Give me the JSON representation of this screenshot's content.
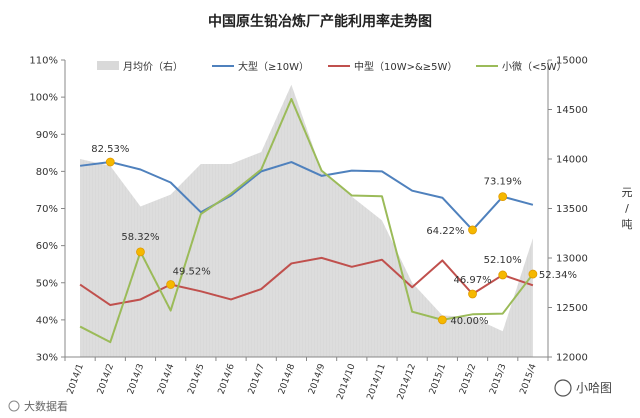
{
  "chart_data": {
    "type": "line",
    "title": "中国原生铅冶炼厂产能利用率走势图",
    "categories": [
      "2014/1",
      "2014/2",
      "2014/3",
      "2014/4",
      "2014/5",
      "2014/6",
      "2014/7",
      "2014/8",
      "2014/9",
      "2014/10",
      "2014/11",
      "2014/12",
      "2015/1",
      "2015/2",
      "2015/3",
      "2015/4"
    ],
    "y_left": {
      "min": 30,
      "max": 110,
      "step": 10,
      "tick_labels": [
        "30%",
        "40%",
        "50%",
        "60%",
        "70%",
        "80%",
        "90%",
        "100%",
        "110%"
      ]
    },
    "y_right": {
      "min": 12000,
      "max": 15000,
      "step": 500,
      "tick_labels": [
        "12000",
        "12500",
        "13000",
        "13500",
        "14000",
        "14500",
        "15000"
      ],
      "label": "元/吨"
    },
    "area_series": {
      "name": "月均价（右）",
      "color": "#d9d9d9",
      "values": [
        14000,
        13930,
        13520,
        13640,
        13950,
        13950,
        14070,
        14750,
        13880,
        13620,
        13380,
        12750,
        12420,
        12400,
        12260,
        13200
      ]
    },
    "series": [
      {
        "name": "大型（≥10W）",
        "color": "#4f81bd",
        "values": [
          81.5,
          82.53,
          80.5,
          77,
          69,
          73.5,
          80,
          82.5,
          78.8,
          80.2,
          80,
          74.8,
          72.9,
          64.22,
          73.19,
          71
        ]
      },
      {
        "name": "中型（10W>&≥5W）",
        "color": "#c0504d",
        "values": [
          49.5,
          44,
          45.5,
          49.52,
          47.7,
          45.5,
          48.3,
          55.2,
          56.7,
          54.3,
          56.2,
          48.8,
          56,
          46.97,
          52.1,
          49.3
        ]
      },
      {
        "name": "小微（<5W）",
        "color": "#9bbb59",
        "values": [
          38.2,
          34,
          58.32,
          42.5,
          68.5,
          74,
          80.5,
          99.5,
          80.2,
          73.5,
          73.3,
          42.2,
          40,
          41.5,
          41.7,
          52.34
        ]
      }
    ],
    "annotations": [
      {
        "label": "82.53%",
        "series": 0,
        "index": 1
      },
      {
        "label": "58.32%",
        "series": 2,
        "index": 2
      },
      {
        "label": "49.52%",
        "series": 1,
        "index": 3
      },
      {
        "label": "64.22%",
        "series": 0,
        "index": 13
      },
      {
        "label": "73.19%",
        "series": 0,
        "index": 14
      },
      {
        "label": "40.00%",
        "series": 2,
        "index": 12
      },
      {
        "label": "46.97%",
        "series": 1,
        "index": 13
      },
      {
        "label": "52.10%",
        "series": 1,
        "index": 14
      },
      {
        "label": "52.34%",
        "series": 2,
        "index": 15
      }
    ],
    "marker_color": "#f5b800",
    "grid": false,
    "legend_position": "top"
  },
  "watermark_left": "大数据看",
  "watermark_right": "小哈图"
}
